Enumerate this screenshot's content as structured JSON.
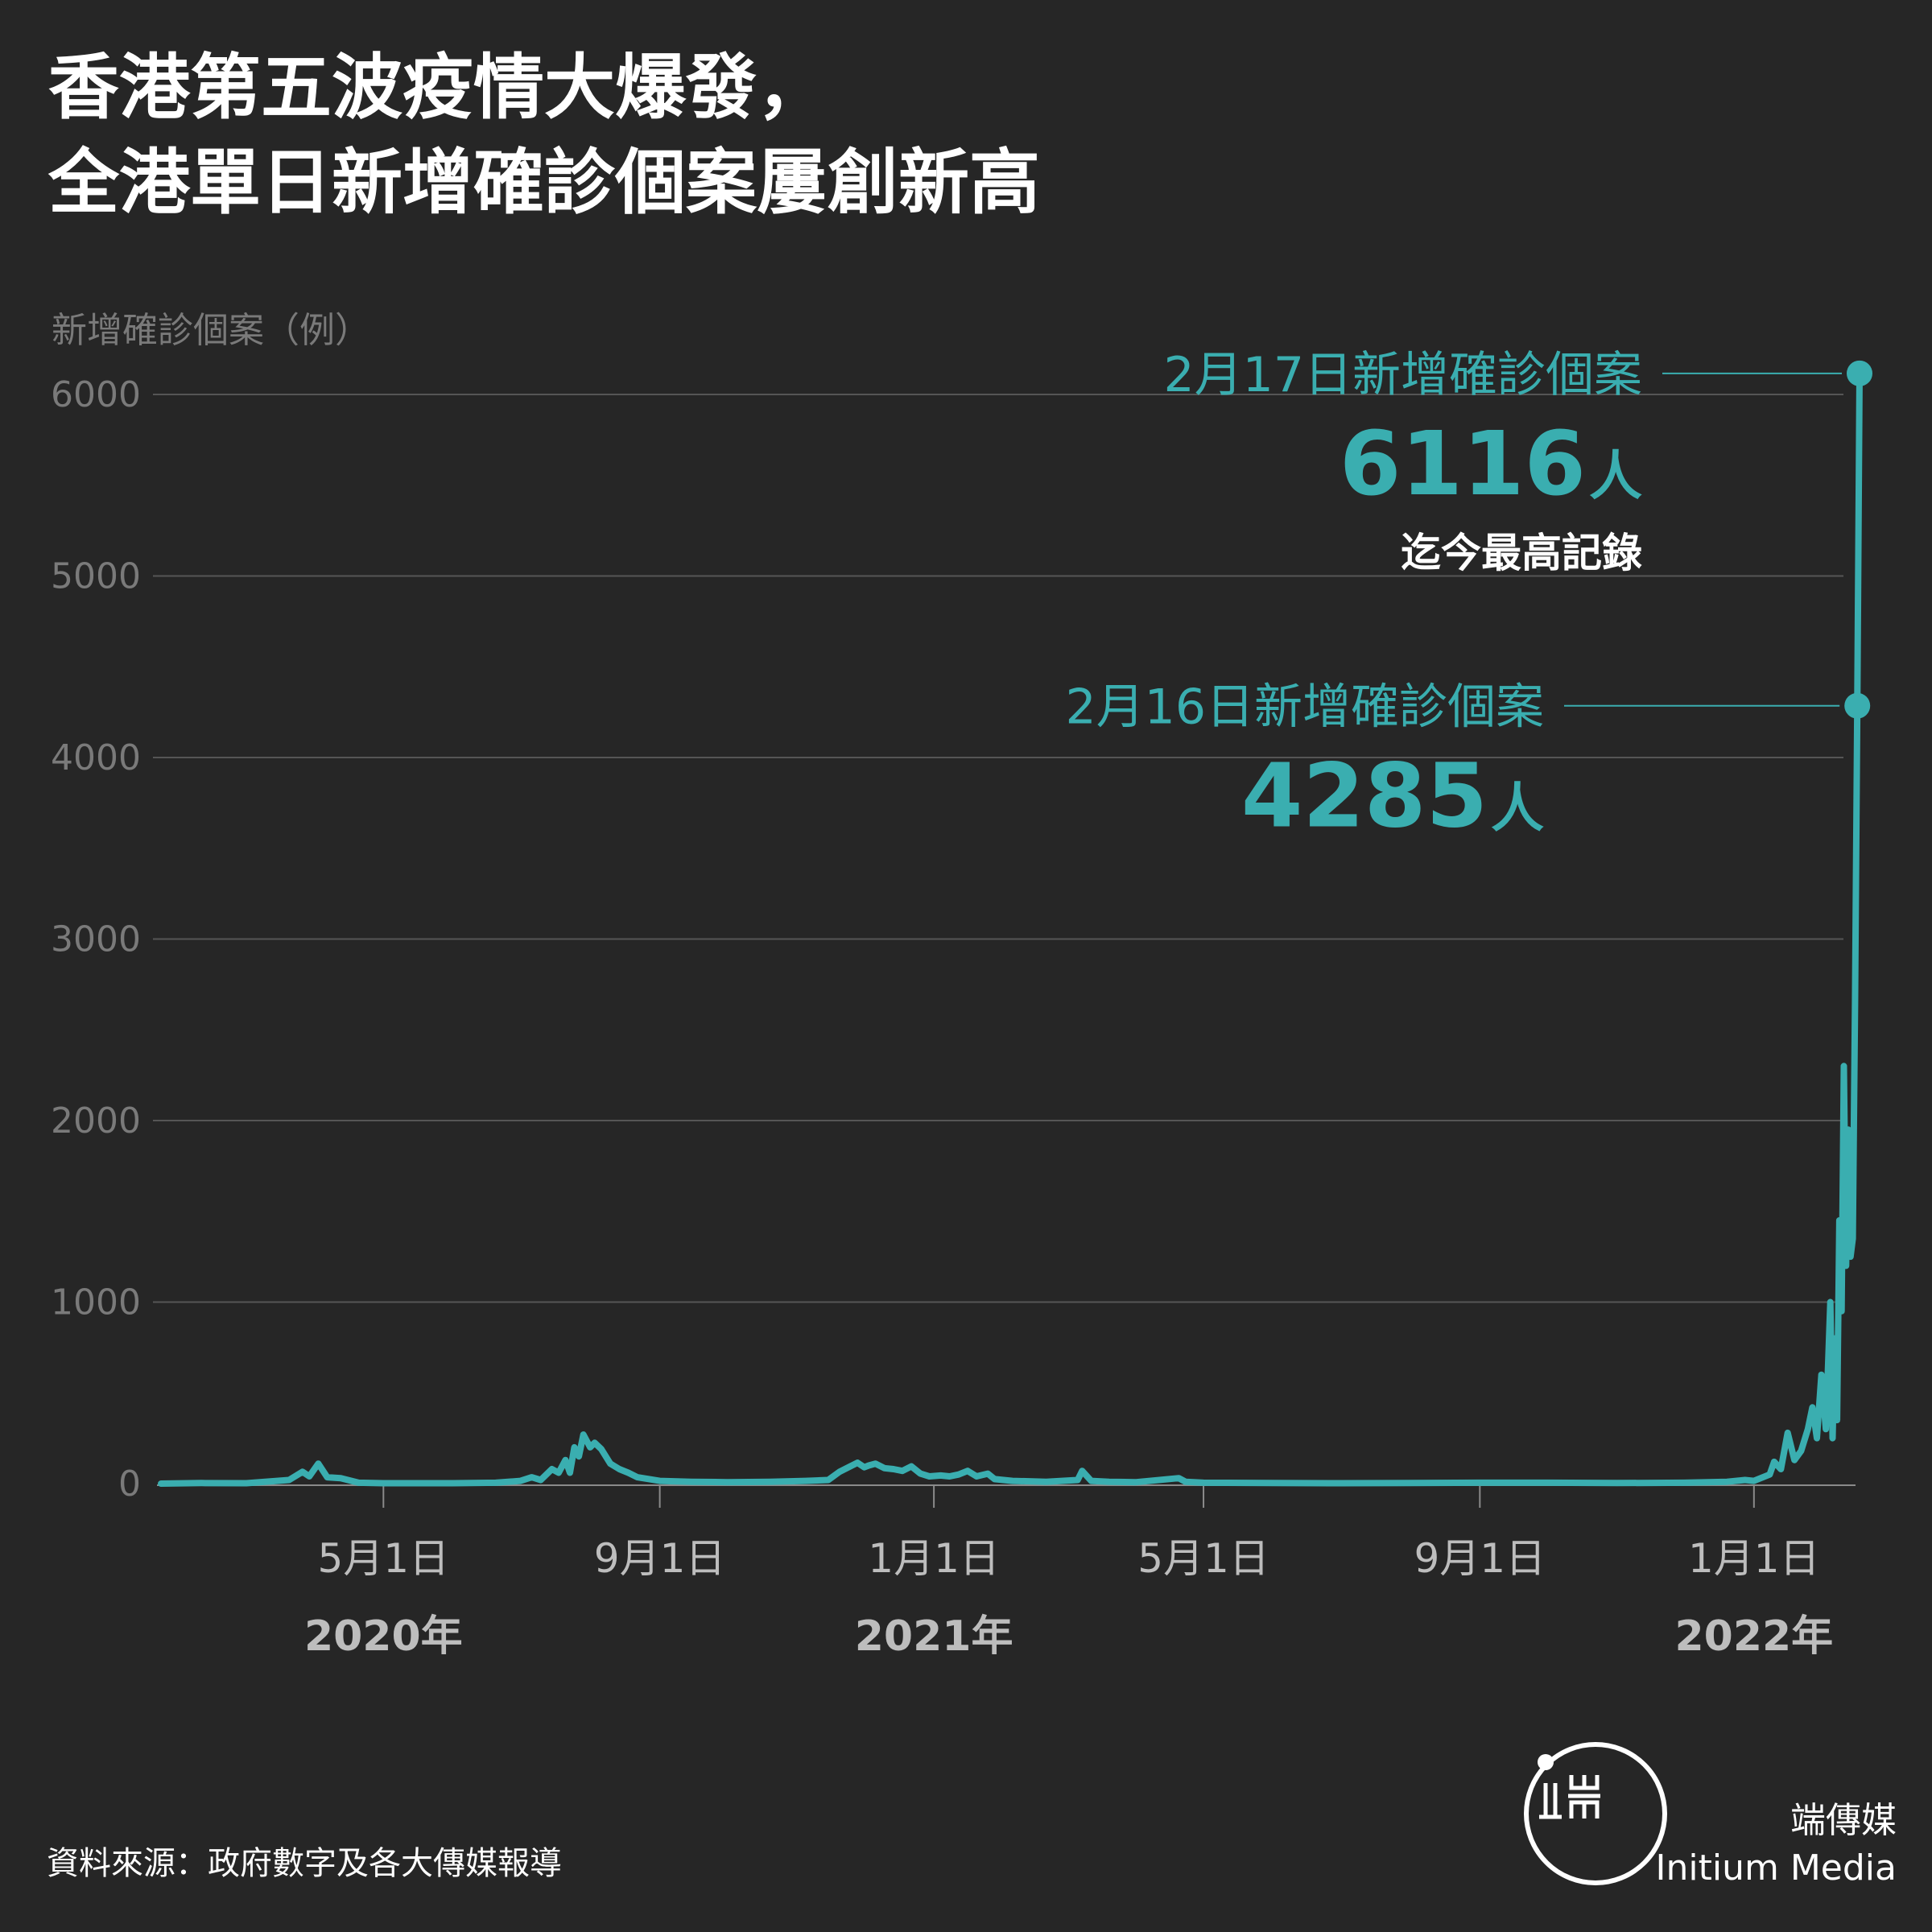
{
  "title": {
    "line1": "香港第五波疫情大爆發，",
    "line2": "全港單日新增確診個案屢創新高"
  },
  "source": "資料來源：政府數字及各大傳媒報導",
  "brand": {
    "zh": "端傳媒",
    "en": "Initium Media"
  },
  "colors": {
    "line": "#3aaeb0",
    "background": "#262626",
    "grid": "#555555",
    "axis_text": "#7a7a7a"
  },
  "chart_data": {
    "type": "line",
    "ylabel": "新增確診個案（例）",
    "ylim": [
      0,
      6000
    ],
    "yticks": [
      "0",
      "1000",
      "2000",
      "3000",
      "4000",
      "5000",
      "6000"
    ],
    "grid": true,
    "x_range": [
      "2020-01-23",
      "2022-02-17"
    ],
    "x_ticks": [
      {
        "label": "5月1日",
        "date": "2020-05-01"
      },
      {
        "label": "9月1日",
        "date": "2020-09-01"
      },
      {
        "label": "1月1日",
        "date": "2021-01-01"
      },
      {
        "label": "5月1日",
        "date": "2021-05-01"
      },
      {
        "label": "9月1日",
        "date": "2021-09-01"
      },
      {
        "label": "1月1日",
        "date": "2022-01-01"
      }
    ],
    "year_labels": [
      {
        "label": "2020年",
        "date": "2020-05-01"
      },
      {
        "label": "2021年",
        "date": "2021-01-01"
      },
      {
        "label": "2022年",
        "date": "2022-01-01"
      }
    ],
    "series": [
      {
        "points": [
          [
            "2020-01-23",
            0
          ],
          [
            "2020-02-10",
            3
          ],
          [
            "2020-03-01",
            2
          ],
          [
            "2020-03-20",
            20
          ],
          [
            "2020-03-26",
            65
          ],
          [
            "2020-03-29",
            40
          ],
          [
            "2020-04-02",
            110
          ],
          [
            "2020-04-06",
            35
          ],
          [
            "2020-04-12",
            30
          ],
          [
            "2020-04-20",
            5
          ],
          [
            "2020-05-01",
            2
          ],
          [
            "2020-06-01",
            2
          ],
          [
            "2020-06-20",
            5
          ],
          [
            "2020-07-01",
            15
          ],
          [
            "2020-07-06",
            35
          ],
          [
            "2020-07-10",
            20
          ],
          [
            "2020-07-15",
            80
          ],
          [
            "2020-07-18",
            60
          ],
          [
            "2020-07-21",
            130
          ],
          [
            "2020-07-23",
            60
          ],
          [
            "2020-07-25",
            200
          ],
          [
            "2020-07-27",
            150
          ],
          [
            "2020-07-29",
            270
          ],
          [
            "2020-08-01",
            200
          ],
          [
            "2020-08-03",
            225
          ],
          [
            "2020-08-06",
            190
          ],
          [
            "2020-08-10",
            110
          ],
          [
            "2020-08-14",
            80
          ],
          [
            "2020-08-18",
            60
          ],
          [
            "2020-08-22",
            35
          ],
          [
            "2020-09-01",
            15
          ],
          [
            "2020-09-15",
            10
          ],
          [
            "2020-10-01",
            8
          ],
          [
            "2020-10-20",
            10
          ],
          [
            "2020-11-05",
            15
          ],
          [
            "2020-11-15",
            20
          ],
          [
            "2020-11-20",
            65
          ],
          [
            "2020-11-24",
            90
          ],
          [
            "2020-11-28",
            115
          ],
          [
            "2020-12-01",
            90
          ],
          [
            "2020-12-03",
            100
          ],
          [
            "2020-12-06",
            110
          ],
          [
            "2020-12-10",
            85
          ],
          [
            "2020-12-14",
            80
          ],
          [
            "2020-12-18",
            70
          ],
          [
            "2020-12-22",
            95
          ],
          [
            "2020-12-26",
            55
          ],
          [
            "2020-12-30",
            40
          ],
          [
            "2021-01-04",
            45
          ],
          [
            "2021-01-08",
            40
          ],
          [
            "2021-01-12",
            50
          ],
          [
            "2021-01-16",
            70
          ],
          [
            "2021-01-20",
            40
          ],
          [
            "2021-01-25",
            55
          ],
          [
            "2021-01-28",
            25
          ],
          [
            "2021-02-05",
            15
          ],
          [
            "2021-02-20",
            10
          ],
          [
            "2021-03-06",
            20
          ],
          [
            "2021-03-08",
            70
          ],
          [
            "2021-03-12",
            15
          ],
          [
            "2021-03-20",
            10
          ],
          [
            "2021-04-01",
            8
          ],
          [
            "2021-04-20",
            30
          ],
          [
            "2021-04-23",
            10
          ],
          [
            "2021-05-01",
            5
          ],
          [
            "2021-06-01",
            3
          ],
          [
            "2021-07-01",
            2
          ],
          [
            "2021-08-01",
            3
          ],
          [
            "2021-09-01",
            5
          ],
          [
            "2021-10-01",
            5
          ],
          [
            "2021-11-01",
            3
          ],
          [
            "2021-12-01",
            5
          ],
          [
            "2021-12-20",
            10
          ],
          [
            "2021-12-28",
            20
          ],
          [
            "2022-01-01",
            15
          ],
          [
            "2022-01-05",
            35
          ],
          [
            "2022-01-08",
            50
          ],
          [
            "2022-01-10",
            120
          ],
          [
            "2022-01-13",
            80
          ],
          [
            "2022-01-16",
            280
          ],
          [
            "2022-01-19",
            130
          ],
          [
            "2022-01-22",
            180
          ],
          [
            "2022-01-25",
            300
          ],
          [
            "2022-01-27",
            420
          ],
          [
            "2022-01-29",
            250
          ],
          [
            "2022-01-31",
            600
          ],
          [
            "2022-02-02",
            300
          ],
          [
            "2022-02-04",
            1000
          ],
          [
            "2022-02-05",
            250
          ],
          [
            "2022-02-06",
            800
          ],
          [
            "2022-02-07",
            350
          ],
          [
            "2022-02-08",
            1450
          ],
          [
            "2022-02-09",
            950
          ],
          [
            "2022-02-10",
            2300
          ],
          [
            "2022-02-11",
            1200
          ],
          [
            "2022-02-12",
            1950
          ],
          [
            "2022-02-13",
            1250
          ],
          [
            "2022-02-14",
            1350
          ],
          [
            "2022-02-15",
            2650
          ],
          [
            "2022-02-16",
            4285
          ],
          [
            "2022-02-17",
            6116
          ]
        ]
      }
    ],
    "annotations": [
      {
        "date": "2022-02-17",
        "value": 6116,
        "label": "2月17日新增確診個案",
        "value_text": "6116",
        "unit": "人",
        "note": "迄今最高記錄"
      },
      {
        "date": "2022-02-16",
        "value": 4285,
        "label": "2月16日新增確診個案",
        "value_text": "4285",
        "unit": "人",
        "note": ""
      }
    ]
  }
}
